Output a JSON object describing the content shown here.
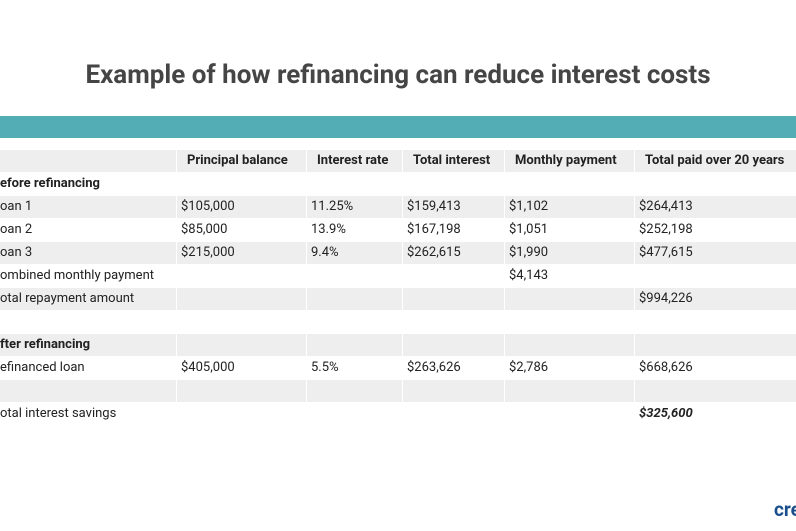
{
  "title": "Example of how refinancing can reduce interest costs",
  "table": {
    "header": [
      null,
      "Principal balance",
      "Interest rate",
      "Total interest",
      "Monthly payment",
      "Total paid over 20 years"
    ],
    "rows": [
      [
        "efore refinancing",
        null,
        null,
        null,
        null,
        null
      ],
      [
        "oan 1",
        "$105,000",
        "11.25%",
        "$159,413",
        "$1,102",
        "$264,413"
      ],
      [
        "oan 2",
        "$85,000",
        "13.9%",
        "$167,198",
        "$1,051",
        "$252,198"
      ],
      [
        "oan 3",
        "$215,000",
        "9.4%",
        "$262,615",
        "$1,990",
        "$477,615"
      ],
      [
        "ombined monthly payment",
        null,
        null,
        null,
        "$4,143",
        null
      ],
      [
        "otal repayment amount",
        null,
        null,
        null,
        null,
        "$994,226"
      ],
      [
        null,
        null,
        null,
        null,
        null,
        null
      ],
      [
        "fter refinancing",
        null,
        null,
        null,
        null,
        null
      ],
      [
        "efinanced loan",
        "$405,000",
        "5.5%",
        "$263,626",
        "$2,786",
        "$668,626"
      ],
      [
        null,
        null,
        null,
        null,
        null,
        null
      ],
      [
        "otal interest savings",
        null,
        null,
        null,
        null,
        "$325,600"
      ]
    ]
  },
  "logo": "cre"
}
